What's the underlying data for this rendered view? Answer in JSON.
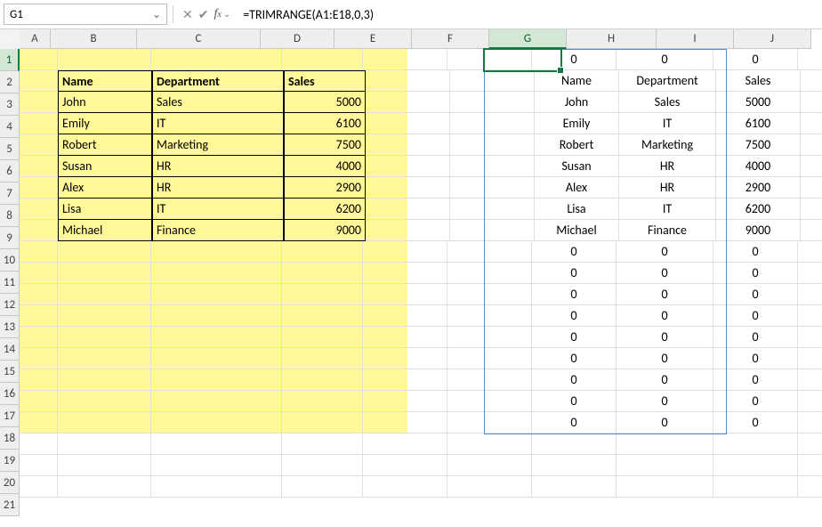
{
  "namebox": {
    "value": "G1"
  },
  "formula": "=TRIMRANGE(A1:E18,0,3)",
  "columns": [
    "A",
    "B",
    "C",
    "D",
    "E",
    "F",
    "G",
    "H",
    "I",
    "J"
  ],
  "row_count": 21,
  "active_col": "G",
  "active_row": 1,
  "yellow_fill": {
    "cols": [
      "A",
      "E"
    ],
    "rows": [
      1,
      18
    ],
    "color": "#fff899"
  },
  "data_table": {
    "range": "B2:D9",
    "headers": [
      "Name",
      "Department",
      "Sales"
    ],
    "rows": [
      [
        "John",
        "Sales",
        "5000"
      ],
      [
        "Emily",
        "IT",
        "6100"
      ],
      [
        "Robert",
        "Marketing",
        "7500"
      ],
      [
        "Susan",
        "HR",
        "4000"
      ],
      [
        "Alex",
        "HR",
        "2900"
      ],
      [
        "Lisa",
        "IT",
        "6200"
      ],
      [
        "Michael",
        "Finance",
        "9000"
      ]
    ]
  },
  "spill": {
    "range": "G1:I18",
    "border_color": "#4a90d9",
    "rows": [
      [
        "0",
        "0",
        "0"
      ],
      [
        "Name",
        "Department",
        "Sales"
      ],
      [
        "John",
        "Sales",
        "5000"
      ],
      [
        "Emily",
        "IT",
        "6100"
      ],
      [
        "Robert",
        "Marketing",
        "7500"
      ],
      [
        "Susan",
        "HR",
        "4000"
      ],
      [
        "Alex",
        "HR",
        "2900"
      ],
      [
        "Lisa",
        "IT",
        "6200"
      ],
      [
        "Michael",
        "Finance",
        "9000"
      ],
      [
        "0",
        "0",
        "0"
      ],
      [
        "0",
        "0",
        "0"
      ],
      [
        "0",
        "0",
        "0"
      ],
      [
        "0",
        "0",
        "0"
      ],
      [
        "0",
        "0",
        "0"
      ],
      [
        "0",
        "0",
        "0"
      ],
      [
        "0",
        "0",
        "0"
      ],
      [
        "0",
        "0",
        "0"
      ],
      [
        "0",
        "0",
        "0"
      ]
    ]
  },
  "colors": {
    "active_green": "#107c41",
    "grid": "#e0e0e0",
    "header_bg": "#eeeeee"
  }
}
